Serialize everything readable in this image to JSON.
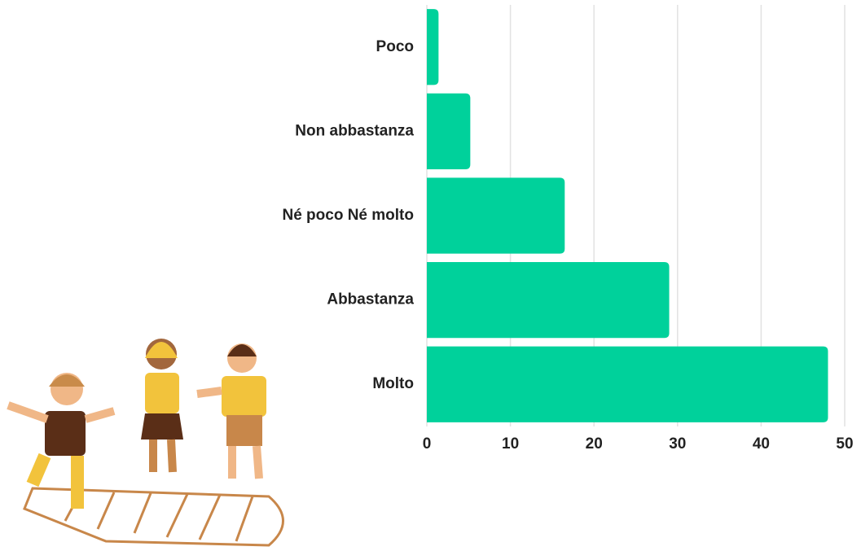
{
  "chart_data": {
    "type": "bar",
    "orientation": "horizontal",
    "categories": [
      "Poco",
      "Non abbastanza",
      "Né poco Né molto",
      "Abbastanza",
      "Molto"
    ],
    "values": [
      1.4,
      5.2,
      16.5,
      29,
      48
    ],
    "color": "#00d19b",
    "xlim": [
      0,
      50
    ],
    "xticks": [
      0,
      10,
      20,
      30,
      40,
      50
    ],
    "grid": true
  }
}
